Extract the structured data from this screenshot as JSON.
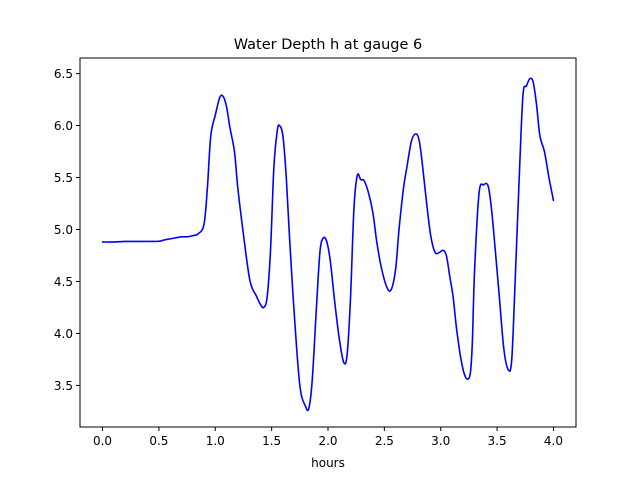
{
  "chart_data": {
    "type": "line",
    "title": "Water Depth h at gauge 6",
    "xlabel": "hours",
    "ylabel": "",
    "xlim": [
      -0.2,
      4.2
    ],
    "ylim": [
      3.1,
      6.65
    ],
    "xticks": [
      0.0,
      0.5,
      1.0,
      1.5,
      2.0,
      2.5,
      3.0,
      3.5,
      4.0
    ],
    "xtick_labels": [
      "0.0",
      "0.5",
      "1.0",
      "1.5",
      "2.0",
      "2.5",
      "3.0",
      "3.5",
      "4.0"
    ],
    "yticks": [
      3.5,
      4.0,
      4.5,
      5.0,
      5.5,
      6.0,
      6.5
    ],
    "ytick_labels": [
      "3.5",
      "4.0",
      "4.5",
      "5.0",
      "5.5",
      "6.0",
      "6.5"
    ],
    "grid": false,
    "series": [
      {
        "color": "#0000ff",
        "x": [
          0.0,
          0.1,
          0.2,
          0.3,
          0.4,
          0.5,
          0.55,
          0.6,
          0.65,
          0.7,
          0.75,
          0.8,
          0.85,
          0.9,
          0.93,
          0.96,
          1.0,
          1.04,
          1.07,
          1.1,
          1.13,
          1.17,
          1.2,
          1.25,
          1.3,
          1.33,
          1.36,
          1.4,
          1.43,
          1.46,
          1.49,
          1.52,
          1.55,
          1.57,
          1.6,
          1.63,
          1.66,
          1.7,
          1.75,
          1.8,
          1.83,
          1.86,
          1.9,
          1.93,
          1.96,
          1.99,
          2.02,
          2.06,
          2.1,
          2.14,
          2.17,
          2.2,
          2.23,
          2.26,
          2.29,
          2.32,
          2.36,
          2.4,
          2.43,
          2.47,
          2.52,
          2.56,
          2.6,
          2.63,
          2.67,
          2.7,
          2.74,
          2.78,
          2.81,
          2.84,
          2.87,
          2.91,
          2.95,
          2.99,
          3.02,
          3.05,
          3.08,
          3.11,
          3.14,
          3.18,
          3.22,
          3.26,
          3.28,
          3.3,
          3.34,
          3.38,
          3.42,
          3.45,
          3.48,
          3.52,
          3.56,
          3.6,
          3.63,
          3.66,
          3.7,
          3.73,
          3.76,
          3.79,
          3.82,
          3.85,
          3.88,
          3.92,
          3.96,
          4.0
        ],
        "y": [
          4.88,
          4.88,
          4.885,
          4.885,
          4.885,
          4.887,
          4.9,
          4.91,
          4.92,
          4.93,
          4.93,
          4.94,
          4.96,
          5.05,
          5.4,
          5.9,
          6.1,
          6.27,
          6.28,
          6.18,
          5.98,
          5.75,
          5.4,
          4.95,
          4.55,
          4.43,
          4.37,
          4.28,
          4.25,
          4.35,
          4.8,
          5.6,
          5.95,
          6.0,
          5.9,
          5.5,
          4.9,
          4.2,
          3.5,
          3.3,
          3.28,
          3.55,
          4.3,
          4.8,
          4.92,
          4.88,
          4.7,
          4.3,
          3.95,
          3.72,
          3.8,
          4.35,
          5.2,
          5.52,
          5.48,
          5.47,
          5.35,
          5.15,
          4.9,
          4.65,
          4.45,
          4.42,
          4.62,
          5.0,
          5.4,
          5.6,
          5.85,
          5.92,
          5.85,
          5.6,
          5.3,
          4.95,
          4.78,
          4.78,
          4.8,
          4.75,
          4.55,
          4.35,
          4.05,
          3.75,
          3.58,
          3.6,
          3.9,
          4.6,
          5.35,
          5.43,
          5.42,
          5.2,
          4.85,
          4.35,
          3.85,
          3.65,
          3.75,
          4.5,
          5.6,
          6.3,
          6.38,
          6.45,
          6.42,
          6.2,
          5.9,
          5.75,
          5.5,
          5.28
        ]
      }
    ]
  }
}
